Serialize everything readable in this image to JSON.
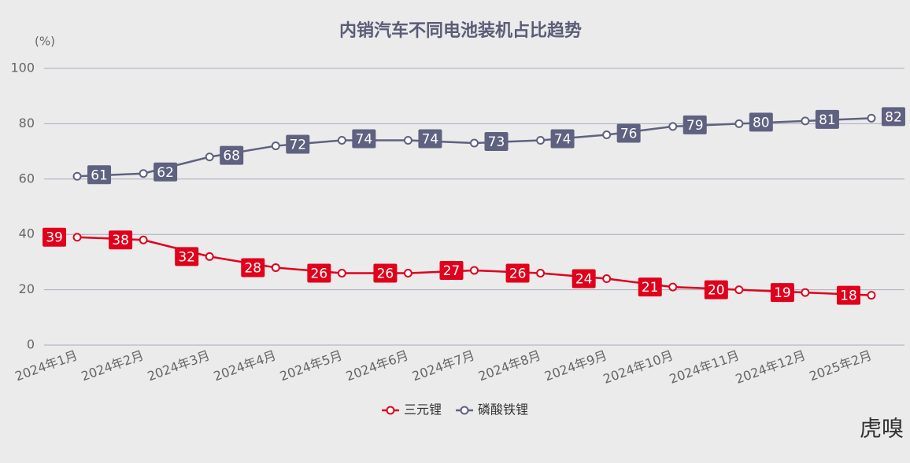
{
  "chart_data": {
    "type": "line",
    "title": "内销汽车不同电池装机占比趋势",
    "y_unit": "(%)",
    "categories": [
      "2024年1月",
      "2024年2月",
      "2024年3月",
      "2024年4月",
      "2024年5月",
      "2024年6月",
      "2024年7月",
      "2024年8月",
      "2024年9月",
      "2024年10月",
      "2024年11月",
      "2024年12月",
      "2025年2月"
    ],
    "series": [
      {
        "name": "三元锂",
        "color": "#e0001b",
        "values": [
          39,
          38,
          32,
          28,
          26,
          26,
          27,
          26,
          24,
          21,
          20,
          19,
          18
        ]
      },
      {
        "name": "磷酸铁锂",
        "color": "#5f6180",
        "values": [
          61,
          62,
          68,
          72,
          74,
          74,
          73,
          74,
          76,
          79,
          80,
          81,
          82
        ]
      }
    ],
    "ylim": [
      0,
      100
    ],
    "yticks": [
      0,
      20,
      40,
      60,
      80,
      100
    ],
    "grid": true,
    "legend": "bottom",
    "watermark": "虎嗅"
  }
}
